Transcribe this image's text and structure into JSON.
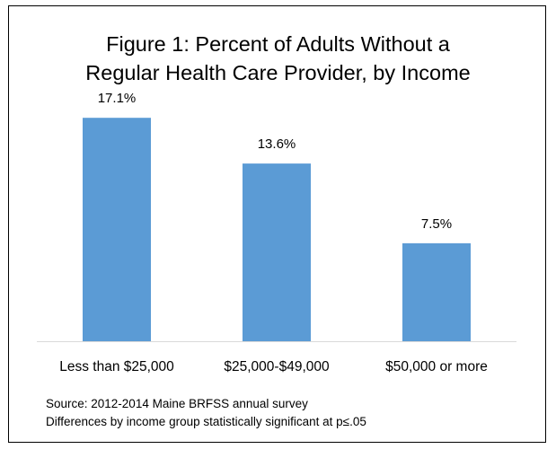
{
  "chart_data": {
    "type": "bar",
    "title_lines": [
      "Figure 1: Percent of Adults Without a",
      "Regular Health Care Provider, by Income"
    ],
    "categories": [
      "Less than $25,000",
      "$25,000-$49,000",
      "$50,000 or more"
    ],
    "values": [
      17.1,
      13.6,
      7.5
    ],
    "data_labels": [
      "17.1%",
      "13.6%",
      "7.5%"
    ],
    "ylim": [
      0,
      20
    ],
    "xlabel": "",
    "ylabel": "",
    "grid": false,
    "legend": "none",
    "bar_color": "#5b9bd5",
    "axis_color": "#d9d9d9"
  },
  "footnotes": [
    "Source: 2012-2014 Maine BRFSS annual survey",
    "Differences by income group statistically significant at p≤.05"
  ]
}
